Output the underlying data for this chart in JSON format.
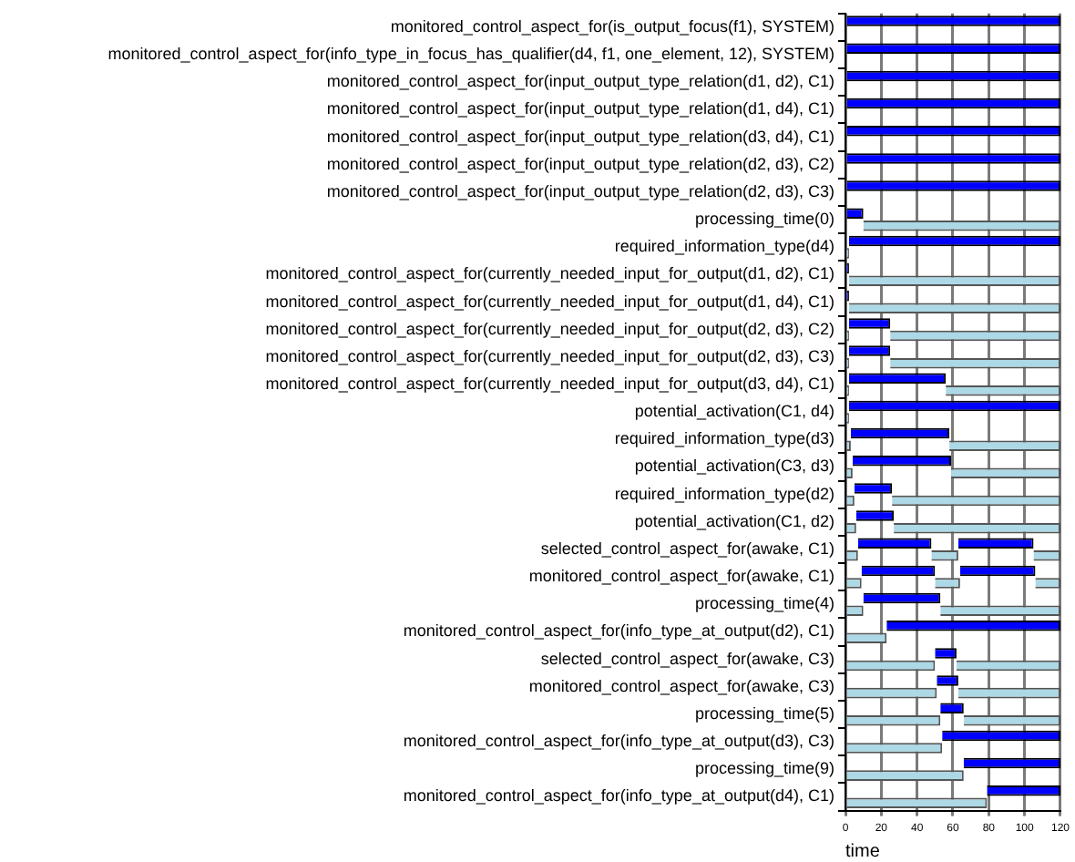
{
  "chart_data": {
    "type": "bar",
    "orientation": "horizontal",
    "xlabel": "time",
    "categories": [
      "monitored_control_aspect_for(is_output_focus(f1), SYSTEM)",
      "monitored_control_aspect_for(info_type_in_focus_has_qualifier(d4, f1, one_element, 12), SYSTEM)",
      "monitored_control_aspect_for(input_output_type_relation(d1, d2), C1)",
      "monitored_control_aspect_for(input_output_type_relation(d1, d4), C1)",
      "monitored_control_aspect_for(input_output_type_relation(d3, d4), C1)",
      "monitored_control_aspect_for(input_output_type_relation(d2, d3), C2)",
      "monitored_control_aspect_for(input_output_type_relation(d2, d3), C3)",
      "processing_time(0)",
      "required_information_type(d4)",
      "monitored_control_aspect_for(currently_needed_input_for_output(d1, d2), C1)",
      "monitored_control_aspect_for(currently_needed_input_for_output(d1, d4), C1)",
      "monitored_control_aspect_for(currently_needed_input_for_output(d2, d3), C2)",
      "monitored_control_aspect_for(currently_needed_input_for_output(d2, d3), C3)",
      "monitored_control_aspect_for(currently_needed_input_for_output(d3, d4), C1)",
      "potential_activation(C1, d4)",
      "required_information_type(d3)",
      "potential_activation(C3, d3)",
      "required_information_type(d2)",
      "potential_activation(C1, d2)",
      "selected_control_aspect_for(awake, C1)",
      "monitored_control_aspect_for(awake, C1)",
      "processing_time(4)",
      "monitored_control_aspect_for(info_type_at_output(d2), C1)",
      "selected_control_aspect_for(awake, C3)",
      "monitored_control_aspect_for(awake, C3)",
      "processing_time(5)",
      "monitored_control_aspect_for(info_type_at_output(d3), C3)",
      "processing_time(9)",
      "monitored_control_aspect_for(info_type_at_output(d4), C1)"
    ],
    "series": [
      {
        "color": "#0000ff",
        "base": [
          0,
          0,
          0,
          0,
          0,
          0,
          0,
          0,
          2,
          0,
          0,
          2,
          2,
          2,
          2,
          3,
          4,
          5,
          6,
          7,
          9,
          10,
          23,
          50,
          51,
          53,
          54,
          66,
          79
        ],
        "values": [
          120,
          120,
          120,
          120,
          120,
          120,
          120,
          10,
          118,
          2,
          2,
          23,
          23,
          54,
          118,
          55,
          55,
          21,
          21,
          41,
          41,
          43,
          97,
          12,
          12,
          13,
          66,
          54,
          41
        ]
      },
      {
        "color": "#0000ff",
        "base": [
          null,
          null,
          null,
          null,
          null,
          null,
          null,
          null,
          null,
          null,
          null,
          null,
          null,
          null,
          null,
          null,
          null,
          null,
          null,
          63,
          64,
          null,
          null,
          null,
          null,
          null,
          null,
          null,
          null
        ],
        "values": [
          null,
          null,
          null,
          null,
          null,
          null,
          null,
          null,
          null,
          null,
          null,
          null,
          null,
          null,
          null,
          null,
          null,
          null,
          null,
          42,
          42,
          null,
          null,
          null,
          null,
          null,
          null,
          null,
          null
        ]
      },
      {
        "color": "#add8e6",
        "base": [
          null,
          null,
          null,
          null,
          null,
          null,
          null,
          10,
          0,
          2,
          2,
          0,
          0,
          0,
          0,
          0,
          0,
          0,
          0,
          0,
          0,
          0,
          0,
          0,
          0,
          0,
          0,
          0,
          0
        ],
        "values": [
          null,
          null,
          null,
          null,
          null,
          null,
          null,
          110,
          2,
          118,
          118,
          2,
          2,
          2,
          2,
          3,
          4,
          5,
          6,
          7,
          9,
          10,
          23,
          50,
          51,
          53,
          54,
          66,
          79
        ]
      },
      {
        "color": "#add8e6",
        "base": [
          null,
          null,
          null,
          null,
          null,
          null,
          null,
          null,
          null,
          null,
          null,
          25,
          25,
          56,
          null,
          58,
          59,
          26,
          27,
          48,
          50,
          53,
          null,
          62,
          63,
          66,
          null,
          null,
          null
        ],
        "values": [
          null,
          null,
          null,
          null,
          null,
          null,
          null,
          null,
          null,
          null,
          null,
          95,
          95,
          64,
          null,
          62,
          61,
          94,
          93,
          15,
          14,
          67,
          null,
          58,
          57,
          54,
          null,
          null,
          null
        ]
      },
      {
        "color": "#add8e6",
        "base": [
          null,
          null,
          null,
          null,
          null,
          null,
          null,
          null,
          null,
          null,
          null,
          null,
          null,
          null,
          null,
          null,
          null,
          null,
          null,
          105,
          106,
          null,
          null,
          null,
          null,
          null,
          null,
          null,
          null
        ],
        "values": [
          null,
          null,
          null,
          null,
          null,
          null,
          null,
          null,
          null,
          null,
          null,
          null,
          null,
          null,
          null,
          null,
          null,
          null,
          null,
          15,
          14,
          null,
          null,
          null,
          null,
          null,
          null,
          null,
          null
        ]
      }
    ],
    "xlim": [
      0,
      120
    ],
    "xticks": [
      0,
      20,
      40,
      60,
      80,
      100,
      120
    ],
    "grid": "x",
    "legend": false
  }
}
